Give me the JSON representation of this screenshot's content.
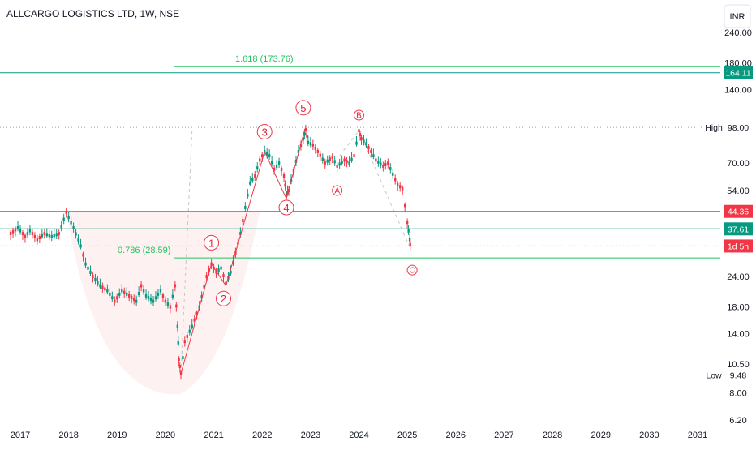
{
  "header": {
    "title": "ALLCARGO LOGISTICS LTD, 1W, NSE",
    "currency_button": "INR"
  },
  "chart_data": {
    "type": "line",
    "title": "ALLCARGO LOGISTICS LTD, 1W, NSE",
    "scale": "log",
    "ylim": [
      6.2,
      240
    ],
    "xlim": [
      2016.8,
      2031.3
    ],
    "x_ticks": [
      "2017",
      "2018",
      "2019",
      "2020",
      "2021",
      "2022",
      "2023",
      "2024",
      "2025",
      "2026",
      "2027",
      "2028",
      "2029",
      "2030",
      "2031"
    ],
    "y_ticks": [
      {
        "value": 240,
        "label": "240.00"
      },
      {
        "value": 180,
        "label": "180.00"
      },
      {
        "value": 140,
        "label": "140.00"
      },
      {
        "value": 98,
        "label": "98.00"
      },
      {
        "value": 70,
        "label": "70.00"
      },
      {
        "value": 54,
        "label": "54.00"
      },
      {
        "value": 24,
        "label": "24.00"
      },
      {
        "value": 18,
        "label": "18.00"
      },
      {
        "value": 14,
        "label": "14.00"
      },
      {
        "value": 10.5,
        "label": "10.50"
      },
      {
        "value": 8,
        "label": "8.00"
      },
      {
        "value": 6.2,
        "label": "6.20"
      }
    ],
    "series": [
      {
        "color": "#089981",
        "points": [
          [
            2016.8,
            36
          ],
          [
            2016.95,
            38
          ],
          [
            2017.1,
            35
          ],
          [
            2017.2,
            37
          ],
          [
            2017.35,
            34
          ],
          [
            2017.5,
            36
          ],
          [
            2017.65,
            35
          ],
          [
            2017.8,
            36
          ],
          [
            2017.95,
            44
          ],
          [
            2018.1,
            38
          ],
          [
            2018.25,
            32
          ],
          [
            2018.35,
            27
          ],
          [
            2018.5,
            24
          ],
          [
            2018.65,
            22
          ],
          [
            2018.8,
            21
          ],
          [
            2018.95,
            19
          ],
          [
            2019.1,
            21
          ],
          [
            2019.25,
            20
          ],
          [
            2019.4,
            19
          ],
          [
            2019.5,
            22
          ],
          [
            2019.6,
            20
          ],
          [
            2019.75,
            19
          ],
          [
            2019.9,
            21
          ],
          [
            2020.0,
            19
          ],
          [
            2020.1,
            18
          ],
          [
            2020.2,
            22
          ],
          [
            2020.25,
            15
          ],
          [
            2020.28,
            11
          ],
          [
            2020.32,
            9.6
          ],
          [
            2020.4,
            13
          ],
          [
            2020.55,
            15
          ],
          [
            2020.7,
            18
          ],
          [
            2020.85,
            24
          ],
          [
            2020.95,
            27
          ],
          [
            2021.05,
            25
          ],
          [
            2021.15,
            26
          ],
          [
            2021.25,
            22.5
          ],
          [
            2021.35,
            25
          ],
          [
            2021.45,
            30
          ],
          [
            2021.55,
            36
          ],
          [
            2021.65,
            46
          ],
          [
            2021.75,
            58
          ],
          [
            2021.85,
            62
          ],
          [
            2021.95,
            72
          ],
          [
            2022.05,
            78
          ],
          [
            2022.15,
            75
          ],
          [
            2022.25,
            66
          ],
          [
            2022.35,
            70
          ],
          [
            2022.45,
            62
          ],
          [
            2022.5,
            52
          ],
          [
            2022.55,
            54
          ],
          [
            2022.65,
            65
          ],
          [
            2022.75,
            78
          ],
          [
            2022.85,
            88
          ],
          [
            2022.9,
            96
          ],
          [
            2022.95,
            85
          ],
          [
            2023.05,
            83
          ],
          [
            2023.15,
            78
          ],
          [
            2023.3,
            70
          ],
          [
            2023.45,
            74
          ],
          [
            2023.55,
            68
          ],
          [
            2023.7,
            72
          ],
          [
            2023.8,
            70
          ],
          [
            2023.9,
            75
          ],
          [
            2024.0,
            95
          ],
          [
            2024.05,
            88
          ],
          [
            2024.15,
            84
          ],
          [
            2024.25,
            78
          ],
          [
            2024.35,
            72
          ],
          [
            2024.5,
            68
          ],
          [
            2024.6,
            70
          ],
          [
            2024.7,
            63
          ],
          [
            2024.8,
            57
          ],
          [
            2024.9,
            55
          ],
          [
            2025.0,
            40
          ],
          [
            2025.05,
            34
          ],
          [
            2025.07,
            31
          ]
        ]
      }
    ],
    "horizontal_levels": [
      {
        "value": 173.76,
        "color": "#22c55e",
        "label": "1.618 (173.76)"
      },
      {
        "value": 164.11,
        "color": "#089981",
        "badge": "164.11"
      },
      {
        "value": 98.0,
        "color": "#9aa0a6",
        "dotted": true,
        "badge_prefix": "High",
        "badge": "98.00"
      },
      {
        "value": 44.36,
        "color": "#f23645",
        "badge": "44.36"
      },
      {
        "value": 37.61,
        "color": "#089981",
        "badge": "37.61"
      },
      {
        "value": 32.0,
        "color": "#f23645",
        "dotted": true,
        "badge": "1d 5h"
      },
      {
        "value": 28.59,
        "color": "#22c55e",
        "label": "0.786 (28.59)"
      },
      {
        "value": 9.48,
        "color": "#9aa0a6",
        "dotted": true,
        "badge_prefix": "Low",
        "badge": "9.48"
      }
    ],
    "wave_labels": [
      {
        "text": "1",
        "x": 2020.95,
        "y": 33
      },
      {
        "text": "2",
        "x": 2021.2,
        "y": 19.5
      },
      {
        "text": "3",
        "x": 2022.05,
        "y": 94
      },
      {
        "text": "4",
        "x": 2022.5,
        "y": 46
      },
      {
        "text": "5",
        "x": 2022.85,
        "y": 118
      },
      {
        "text": "A",
        "x": 2023.55,
        "y": 54
      },
      {
        "text": "B",
        "x": 2024.0,
        "y": 110
      },
      {
        "text": "C",
        "x": 2025.1,
        "y": 25.5
      }
    ]
  }
}
